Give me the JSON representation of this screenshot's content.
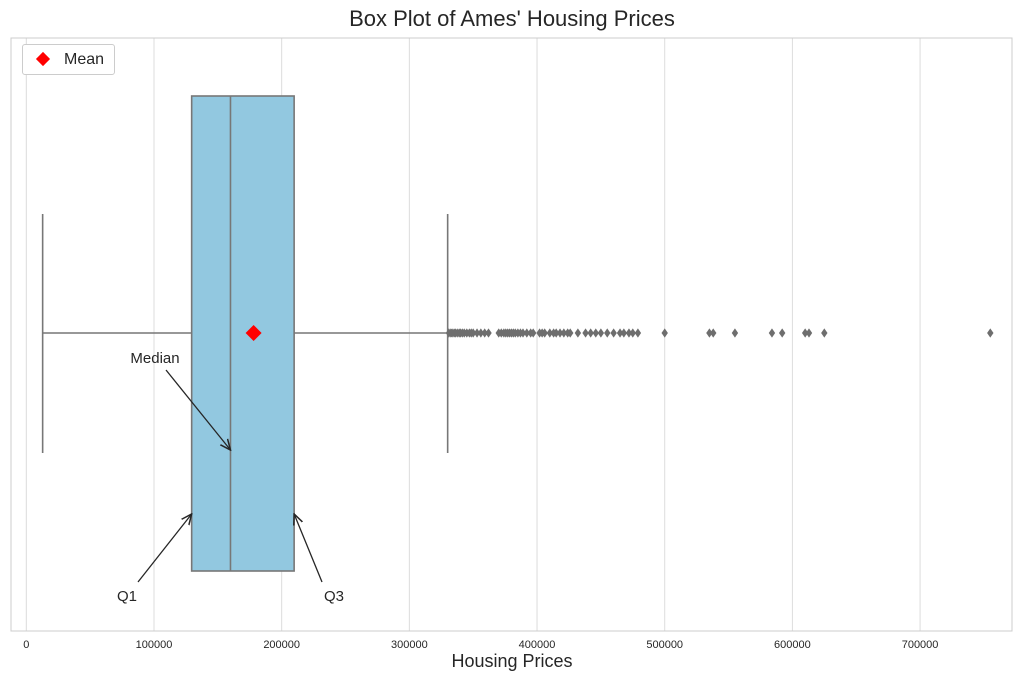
{
  "chart_data": {
    "type": "boxplot",
    "title": "Box Plot of Ames' Housing Prices",
    "xlabel": "Housing Prices",
    "ylabel": "",
    "xlim": [
      -12000,
      772000
    ],
    "xticks": [
      0,
      100000,
      200000,
      300000,
      400000,
      500000,
      600000,
      700000
    ],
    "grid": true,
    "orientation": "horizontal",
    "box": {
      "whisker_low": 12789,
      "q1": 129500,
      "median": 159900,
      "q3": 209750,
      "whisker_high": 330000,
      "mean": 178000,
      "fill_color": "#92c8e0",
      "line_color": "#777777"
    },
    "outliers": [
      331000,
      332500,
      333500,
      335000,
      336000,
      337500,
      339000,
      340000,
      341500,
      343000,
      345000,
      347000,
      348500,
      350000,
      353000,
      356000,
      359000,
      362000,
      370000,
      372000,
      374000,
      375500,
      377000,
      378500,
      380000,
      381500,
      383000,
      385000,
      387000,
      389000,
      392000,
      395000,
      397000,
      402000,
      404000,
      406000,
      410000,
      413000,
      415000,
      418000,
      421000,
      424000,
      426000,
      432000,
      438000,
      442000,
      446000,
      450000,
      455000,
      460000,
      465000,
      468000,
      472000,
      475000,
      479000,
      500000,
      535000,
      538000,
      555000,
      584000,
      592000,
      610000,
      613000,
      625000,
      755000
    ],
    "mean_color": "#ff0000",
    "legend": {
      "position": "top-left",
      "entries": [
        "Mean"
      ]
    },
    "annotations": [
      {
        "text": "Median",
        "value": 159900
      },
      {
        "text": "Q1",
        "value": 129500
      },
      {
        "text": "Q3",
        "value": 209750
      }
    ]
  }
}
